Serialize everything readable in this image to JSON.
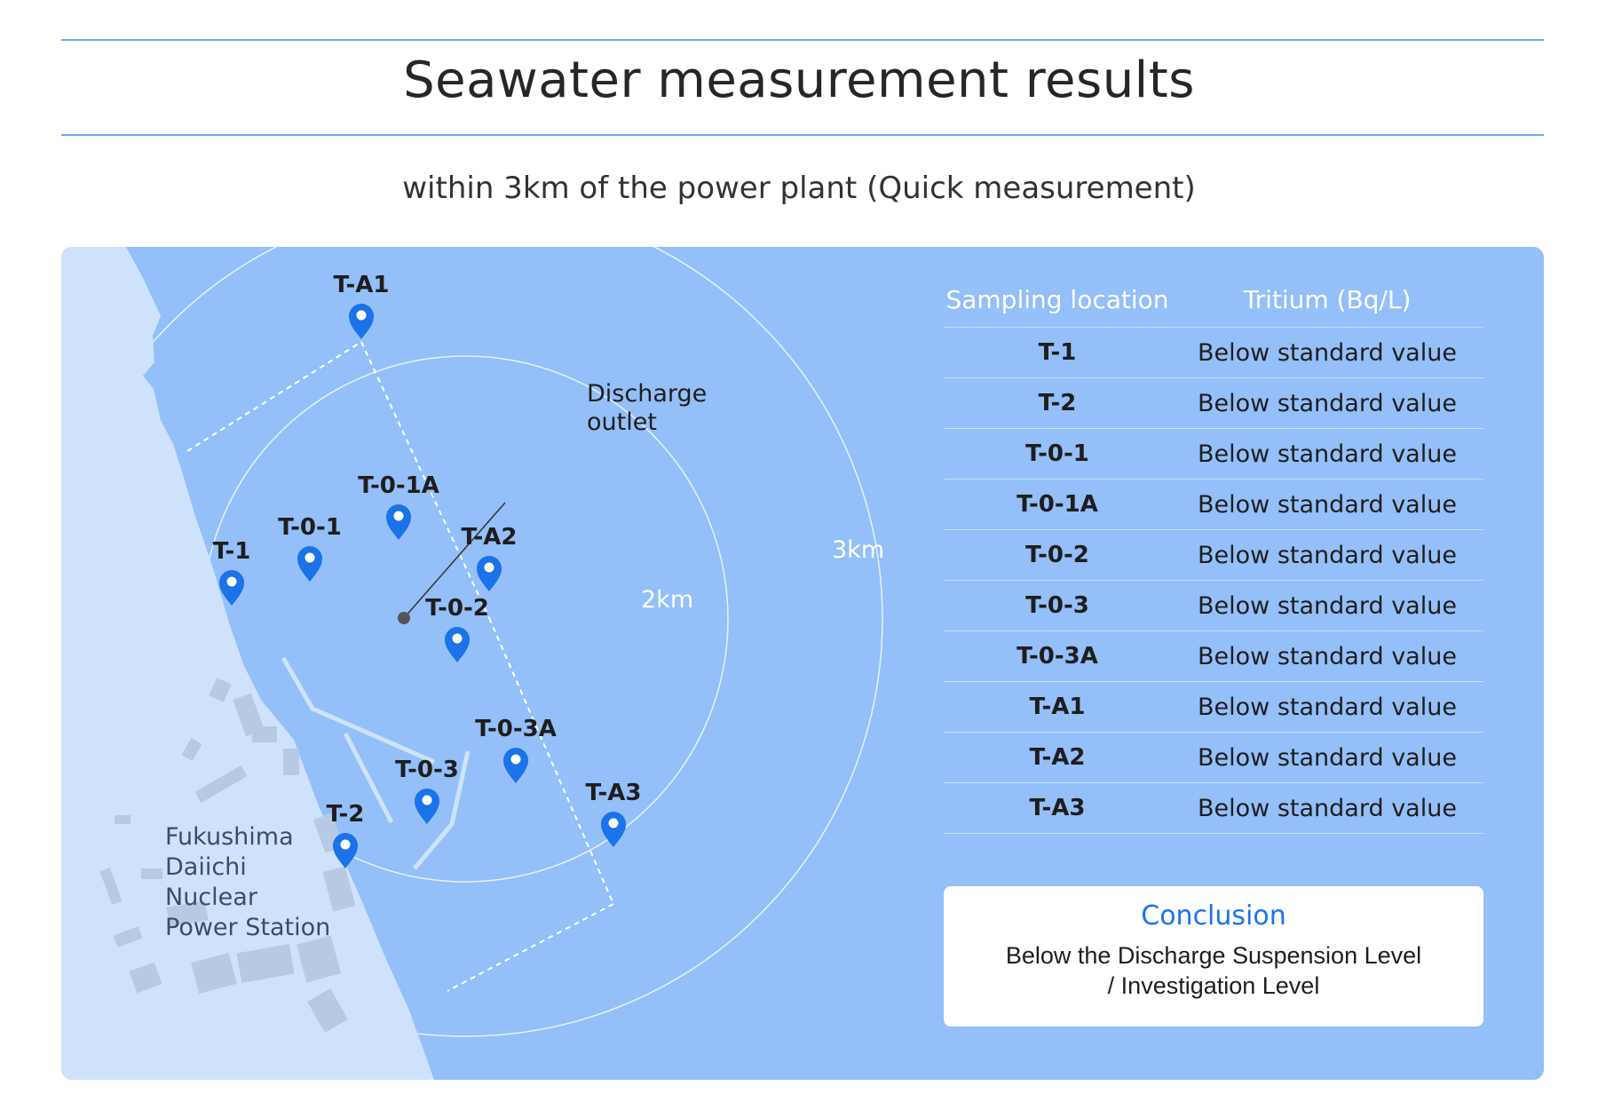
{
  "header": {
    "title": "Seawater measurement results",
    "subtitle": "within 3km of the power plant (Quick measurement)"
  },
  "map": {
    "ring_labels": {
      "r2": "2km",
      "r3": "3km"
    },
    "discharge_outlet": {
      "line1": "Discharge",
      "line2": "outlet"
    },
    "plant": {
      "line1": "Fukushima",
      "line2": "Daiichi",
      "line3": "Nuclear",
      "line4": "Power Station"
    },
    "pins": [
      {
        "id": "T-A1"
      },
      {
        "id": "T-0-1A"
      },
      {
        "id": "T-0-1"
      },
      {
        "id": "T-1"
      },
      {
        "id": "T-A2"
      },
      {
        "id": "T-0-2"
      },
      {
        "id": "T-0-3A"
      },
      {
        "id": "T-0-3"
      },
      {
        "id": "T-A3"
      },
      {
        "id": "T-2"
      }
    ],
    "colors": {
      "sea": "#94bff8",
      "land": "#cfe2fb",
      "pin": "#1a73e8",
      "ring": "#e8f1ff"
    }
  },
  "table": {
    "headers": {
      "location": "Sampling location",
      "tritium": "Tritium (Bq/L)"
    },
    "rows": [
      {
        "location": "T-1",
        "tritium": "Below standard value"
      },
      {
        "location": "T-2",
        "tritium": "Below standard value"
      },
      {
        "location": "T-0-1",
        "tritium": "Below standard value"
      },
      {
        "location": "T-0-1A",
        "tritium": "Below standard value"
      },
      {
        "location": "T-0-2",
        "tritium": "Below standard value"
      },
      {
        "location": "T-0-3",
        "tritium": "Below standard value"
      },
      {
        "location": "T-0-3A",
        "tritium": "Below standard value"
      },
      {
        "location": "T-A1",
        "tritium": "Below standard value"
      },
      {
        "location": "T-A2",
        "tritium": "Below standard value"
      },
      {
        "location": "T-A3",
        "tritium": "Below standard value"
      }
    ]
  },
  "conclusion": {
    "title": "Conclusion",
    "text_line1": "Below the Discharge Suspension Level",
    "text_line2": "/ Investigation Level"
  }
}
